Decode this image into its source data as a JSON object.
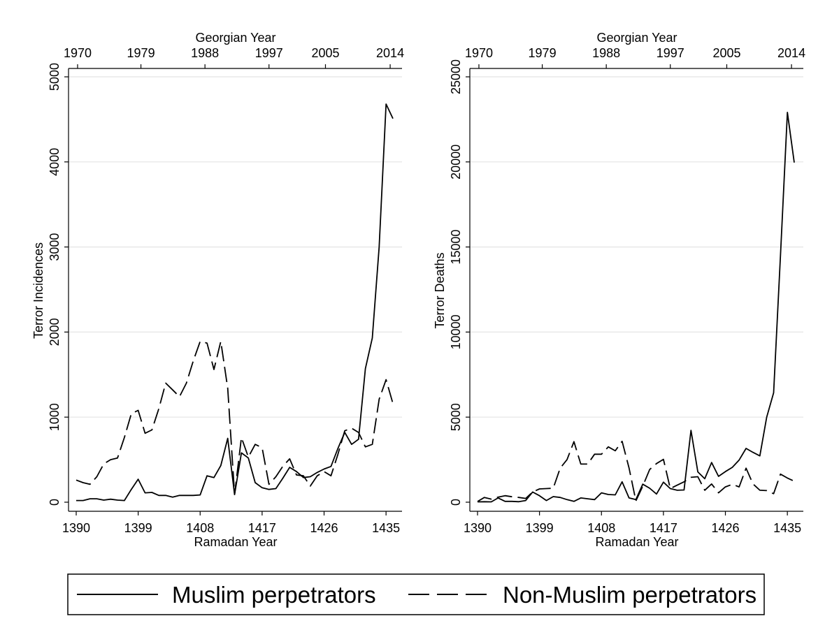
{
  "chart_data": [
    {
      "type": "line",
      "ylabel": "Terror Incidences",
      "xlabel_bottom": "Ramadan Year",
      "xlabel_top": "Georgian Year",
      "ylim": [
        0,
        5000
      ],
      "yticks": [
        0,
        1000,
        2000,
        3000,
        4000,
        5000
      ],
      "ytick_labels": [
        "0",
        "1000",
        "2000",
        "3000",
        "4000",
        "5000"
      ],
      "xlim": [
        1390,
        1436
      ],
      "xticks_bottom": [
        1390,
        1399,
        1408,
        1417,
        1426,
        1435
      ],
      "xtick_labels_bottom": [
        "1390",
        "1399",
        "1408",
        "1417",
        "1426",
        "1435"
      ],
      "xticks_top": [
        1390.2,
        1399.4,
        1408.7,
        1418,
        1426.2,
        1435.6
      ],
      "xtick_labels_top": [
        "1970",
        "1979",
        "1988",
        "1997",
        "2005",
        "2014"
      ],
      "x": [
        1390,
        1391,
        1392,
        1393,
        1394,
        1395,
        1396,
        1397,
        1398,
        1399,
        1400,
        1401,
        1402,
        1403,
        1404,
        1405,
        1406,
        1407,
        1408,
        1409,
        1410,
        1411,
        1412,
        1413,
        1414,
        1415,
        1416,
        1417,
        1418,
        1419,
        1420,
        1421,
        1422,
        1423,
        1424,
        1425,
        1426,
        1427,
        1428,
        1429,
        1430,
        1431,
        1432,
        1433,
        1434,
        1435,
        1436
      ],
      "series": [
        {
          "name": "Muslim perpetrators",
          "style": "solid",
          "values": [
            20,
            20,
            40,
            40,
            25,
            35,
            25,
            20,
            150,
            270,
            110,
            115,
            80,
            80,
            60,
            80,
            80,
            80,
            85,
            310,
            290,
            430,
            750,
            90,
            580,
            520,
            230,
            170,
            150,
            160,
            280,
            410,
            360,
            290,
            300,
            350,
            390,
            420,
            630,
            820,
            680,
            740,
            1570,
            1930,
            3000,
            4680,
            4510
          ]
        },
        {
          "name": "Non-Muslim perpetrators",
          "style": "dashed",
          "values": [
            260,
            230,
            210,
            300,
            450,
            500,
            520,
            760,
            1040,
            1080,
            810,
            850,
            1100,
            1400,
            1320,
            1240,
            1400,
            1660,
            1890,
            1870,
            1560,
            1890,
            1340,
            90,
            760,
            530,
            680,
            640,
            210,
            300,
            420,
            510,
            320,
            310,
            190,
            310,
            360,
            310,
            560,
            840,
            870,
            820,
            650,
            680,
            1210,
            1440,
            1160
          ]
        }
      ]
    },
    {
      "type": "line",
      "ylabel": "Terror Deaths",
      "xlabel_bottom": "Ramadan Year",
      "xlabel_top": "Georgian Year",
      "ylim": [
        0,
        25000
      ],
      "yticks": [
        0,
        5000,
        10000,
        15000,
        20000,
        25000
      ],
      "ytick_labels": [
        "0",
        "5000",
        "10000",
        "15000",
        "20000",
        "25000"
      ],
      "xlim": [
        1390,
        1436
      ],
      "xticks_bottom": [
        1390,
        1399,
        1408,
        1417,
        1426,
        1435
      ],
      "xtick_labels_bottom": [
        "1390",
        "1399",
        "1408",
        "1417",
        "1426",
        "1435"
      ],
      "xticks_top": [
        1390.2,
        1399.4,
        1408.7,
        1418,
        1426.2,
        1435.6
      ],
      "xtick_labels_top": [
        "1970",
        "1979",
        "1988",
        "1997",
        "2005",
        "2014"
      ],
      "x": [
        1390,
        1391,
        1392,
        1393,
        1394,
        1395,
        1396,
        1397,
        1398,
        1399,
        1400,
        1401,
        1402,
        1403,
        1404,
        1405,
        1406,
        1407,
        1408,
        1409,
        1410,
        1411,
        1412,
        1413,
        1414,
        1415,
        1416,
        1417,
        1418,
        1419,
        1420,
        1421,
        1422,
        1423,
        1424,
        1425,
        1426,
        1427,
        1428,
        1429,
        1430,
        1431,
        1432,
        1433,
        1434,
        1435,
        1436
      ],
      "series": [
        {
          "name": "Muslim perpetrators",
          "style": "solid",
          "values": [
            20,
            30,
            20,
            250,
            50,
            50,
            30,
            100,
            600,
            380,
            100,
            330,
            280,
            150,
            50,
            250,
            200,
            150,
            550,
            450,
            430,
            1200,
            250,
            150,
            1060,
            820,
            480,
            1180,
            800,
            700,
            720,
            4220,
            1780,
            1380,
            2330,
            1520,
            1800,
            2050,
            2480,
            3160,
            2930,
            2720,
            5000,
            6430,
            14500,
            22910,
            19960
          ]
        },
        {
          "name": "Non-Muslim perpetrators",
          "style": "dashed",
          "values": [
            40,
            280,
            180,
            300,
            380,
            320,
            280,
            220,
            600,
            780,
            800,
            820,
            2000,
            2500,
            3560,
            2240,
            2240,
            2820,
            2820,
            3250,
            3020,
            3580,
            2010,
            80,
            940,
            1920,
            2270,
            2520,
            800,
            1000,
            1200,
            1460,
            1500,
            700,
            1070,
            550,
            900,
            1050,
            900,
            2000,
            1080,
            700,
            680,
            500,
            1650,
            1420,
            1230
          ]
        }
      ]
    }
  ],
  "legend": {
    "items": [
      {
        "label": "Muslim perpetrators",
        "style": "solid"
      },
      {
        "label": "Non-Muslim perpetrators",
        "style": "dashed"
      }
    ]
  }
}
